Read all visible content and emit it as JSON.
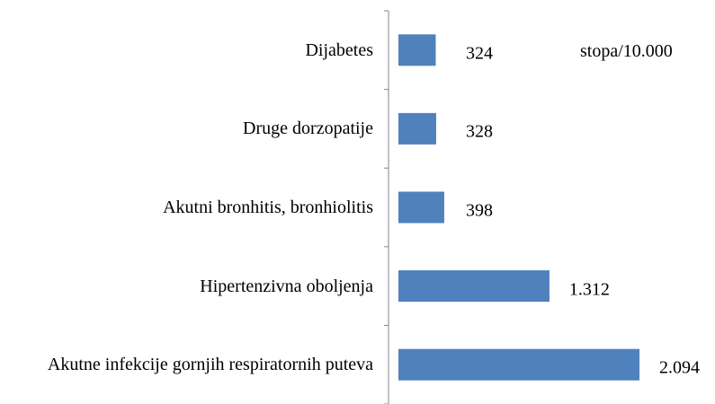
{
  "chart_data": {
    "type": "bar",
    "orientation": "horizontal",
    "annotation": "stopa/10.000",
    "categories": [
      "Dijabetes",
      "Druge dorzopatije",
      "Akutni bronhitis, bronhiolitis",
      "Hipertenzivna oboljenja",
      "Akutne infekcije gornjih respiratornih puteva"
    ],
    "values": [
      324,
      328,
      398,
      1312,
      2094
    ],
    "value_labels": [
      "324",
      "328",
      "398",
      "1.312",
      "2.094"
    ],
    "color": "#4f81bd",
    "xlim": [
      0,
      2500
    ]
  }
}
